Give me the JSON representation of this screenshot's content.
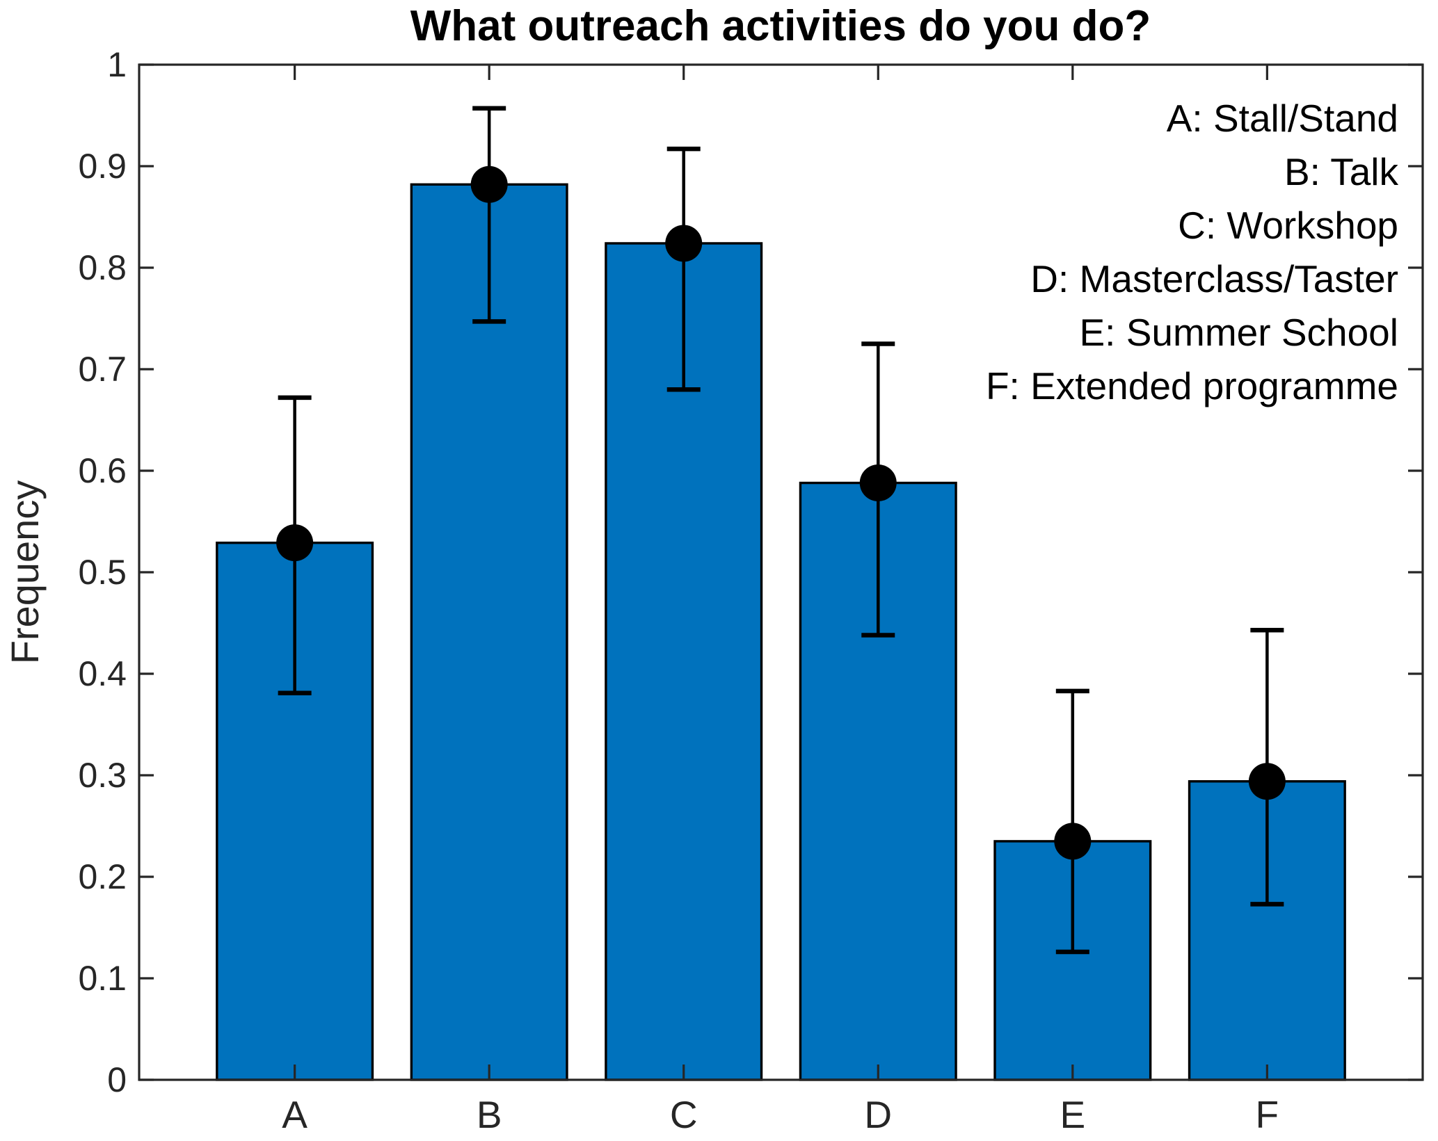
{
  "chart_data": {
    "type": "bar",
    "title": "What outreach activities do you do?",
    "xlabel": "",
    "ylabel": "Frequency",
    "categories": [
      "A",
      "B",
      "C",
      "D",
      "E",
      "F"
    ],
    "values": [
      0.529,
      0.882,
      0.824,
      0.588,
      0.235,
      0.294
    ],
    "error_low": [
      0.381,
      0.747,
      0.68,
      0.438,
      0.126,
      0.173
    ],
    "error_high": [
      0.672,
      0.957,
      0.917,
      0.725,
      0.383,
      0.443
    ],
    "bar_width": 0.8,
    "ylim": [
      0,
      1
    ],
    "xlim": [
      0.2,
      6.8
    ],
    "yticks": [
      0,
      0.1,
      0.2,
      0.3,
      0.4,
      0.5,
      0.6,
      0.7,
      0.8,
      0.9,
      1
    ],
    "ytick_labels": [
      "0",
      "0.1",
      "0.2",
      "0.3",
      "0.4",
      "0.5",
      "0.6",
      "0.7",
      "0.8",
      "0.9",
      "1"
    ],
    "grid": false,
    "legend_position": "top-right-inside",
    "legend": [
      "A: Stall/Stand",
      "B: Talk",
      "C: Workshop",
      "D: Masterclass/Taster",
      "E: Summer School",
      "F: Extended programme"
    ],
    "colors": {
      "bar_fill": "#0072BD",
      "bar_edge": "#000000",
      "error_bar": "#000000",
      "marker": "#000000",
      "axis": "#262626",
      "tick_label": "#262626",
      "title": "#000000",
      "legend_text": "#000000",
      "background": "#ffffff"
    }
  }
}
